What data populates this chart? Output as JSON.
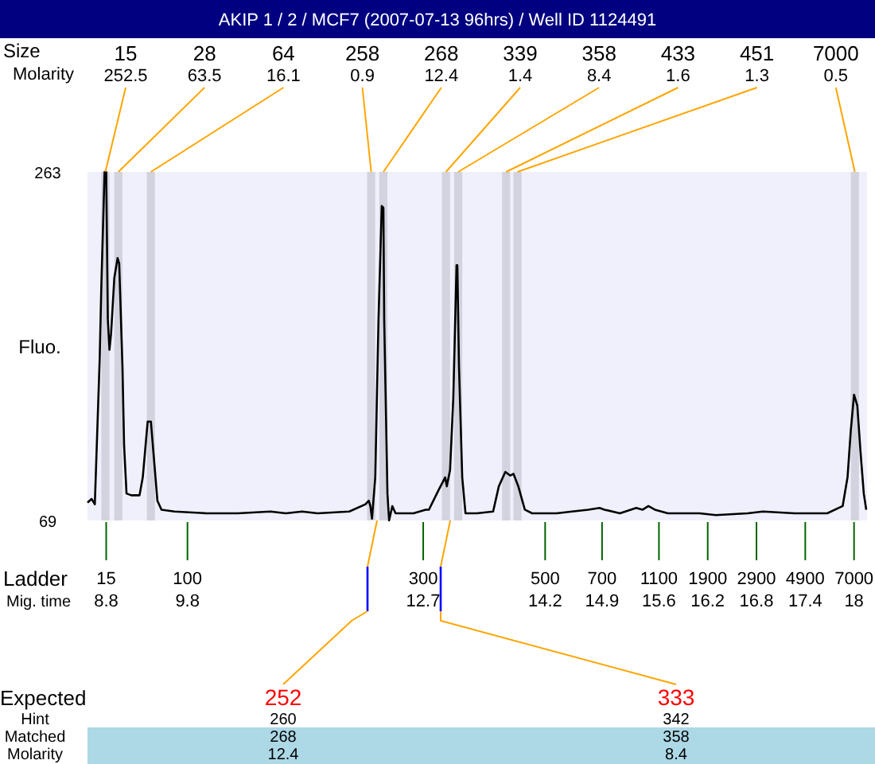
{
  "chart_data": {
    "type": "line",
    "title": "AKIP 1 / 2 / MCF7 (2007-07-13 96hrs) / Well ID 1124491",
    "ylabel": "Fluo.",
    "xlabel": "Mig. time",
    "xlim": [
      8.57,
      18.16
    ],
    "xticks": [
      8.8,
      9.8,
      12.7,
      14.2,
      14.9,
      15.6,
      16.2,
      16.8,
      17.4,
      18
    ],
    "ylim": [
      69,
      263
    ],
    "yticks": [
      69,
      263
    ],
    "grid": false,
    "line_style": "solid",
    "marker": "none",
    "series": [
      {
        "color": "#000000",
        "x": [
          8.57,
          8.62,
          8.66,
          8.72,
          8.74,
          8.78,
          8.8,
          8.82,
          8.84,
          8.86,
          8.9,
          8.94,
          8.96,
          9.0,
          9.02,
          9.05,
          9.11,
          9.21,
          9.25,
          9.31,
          9.35,
          9.39,
          9.43,
          9.48,
          9.64,
          10.03,
          10.42,
          10.82,
          11.01,
          11.21,
          11.4,
          11.79,
          11.99,
          12.03,
          12.05,
          12.07,
          12.11,
          12.15,
          12.19,
          12.21,
          12.22,
          12.26,
          12.28,
          12.32,
          12.36,
          12.58,
          12.73,
          12.77,
          12.89,
          12.97,
          12.99,
          13.03,
          13.07,
          13.11,
          13.12,
          13.14,
          13.18,
          13.22,
          13.36,
          13.56,
          13.63,
          13.71,
          13.77,
          13.81,
          13.87,
          13.95,
          14.04,
          14.34,
          14.53,
          14.73,
          14.87,
          14.93,
          15.12,
          15.32,
          15.4,
          15.47,
          15.55,
          15.71,
          16.1,
          16.3,
          16.69,
          16.88,
          17.27,
          17.67,
          17.86,
          17.92,
          17.96,
          18.0,
          18.04,
          18.08,
          18.12,
          18.15
        ],
        "values": [
          79,
          81,
          78,
          159,
          199,
          263,
          263,
          181,
          164,
          173,
          204,
          215,
          212,
          155,
          111,
          84,
          83,
          83,
          93,
          124,
          124,
          102,
          80,
          75,
          74,
          73,
          73,
          74,
          73,
          74,
          73,
          74,
          78,
          80,
          77,
          70,
          93,
          181,
          244,
          243,
          181,
          84,
          69,
          77,
          73,
          73,
          75,
          75,
          86,
          93,
          88,
          97,
          137,
          211,
          211,
          155,
          93,
          73,
          73,
          74,
          88,
          96,
          94,
          95,
          88,
          75,
          73,
          73,
          74,
          75,
          76,
          75,
          73,
          76,
          75,
          77,
          75,
          73,
          73,
          72,
          73,
          74,
          73,
          73,
          77,
          93,
          119,
          139,
          133,
          107,
          84,
          75
        ]
      }
    ],
    "bands": [
      {
        "axis": "x",
        "from": 8.74,
        "to": 8.84,
        "label": "15"
      },
      {
        "axis": "x",
        "from": 8.9,
        "to": 9.0,
        "label": "28"
      },
      {
        "axis": "x",
        "from": 9.3,
        "to": 9.4,
        "label": "64"
      },
      {
        "axis": "x",
        "from": 12.01,
        "to": 12.11,
        "label": "258"
      },
      {
        "axis": "x",
        "from": 12.16,
        "to": 12.26,
        "label": "268"
      },
      {
        "axis": "x",
        "from": 12.93,
        "to": 13.03,
        "label": "339"
      },
      {
        "axis": "x",
        "from": 13.08,
        "to": 13.18,
        "label": "358"
      },
      {
        "axis": "x",
        "from": 13.67,
        "to": 13.77,
        "label": "433"
      },
      {
        "axis": "x",
        "from": 13.81,
        "to": 13.91,
        "label": "451"
      },
      {
        "axis": "x",
        "from": 17.96,
        "to": 18.06,
        "label": "7000"
      }
    ],
    "annotations": [
      "Size",
      "Molarity",
      {
        "text": "252.5",
        "x": 8.79,
        "y": 263
      },
      {
        "text": "63.5",
        "x": 8.95,
        "y": 263
      },
      {
        "text": "16.1",
        "x": 9.35,
        "y": 263
      },
      {
        "text": "0.9",
        "x": 12.06,
        "y": 263
      },
      {
        "text": "12.4",
        "x": 12.21,
        "y": 263
      },
      {
        "text": "1.4",
        "x": 12.98,
        "y": 263
      },
      {
        "text": "8.4",
        "x": 13.13,
        "y": 263
      },
      {
        "text": "1.6",
        "x": 13.72,
        "y": 263
      },
      {
        "text": "1.3",
        "x": 13.86,
        "y": 263
      },
      {
        "text": "0.5",
        "x": 18.01,
        "y": 263
      },
      "252",
      "333",
      "Ladder",
      "15",
      "100",
      "300",
      "500",
      "700",
      "1100",
      "1900",
      "2900",
      "4900",
      "7000",
      "Expected",
      "Hint",
      "Matched",
      "Molarity",
      "260",
      "268",
      "12.4",
      "342",
      "358",
      "8.4"
    ]
  }
}
